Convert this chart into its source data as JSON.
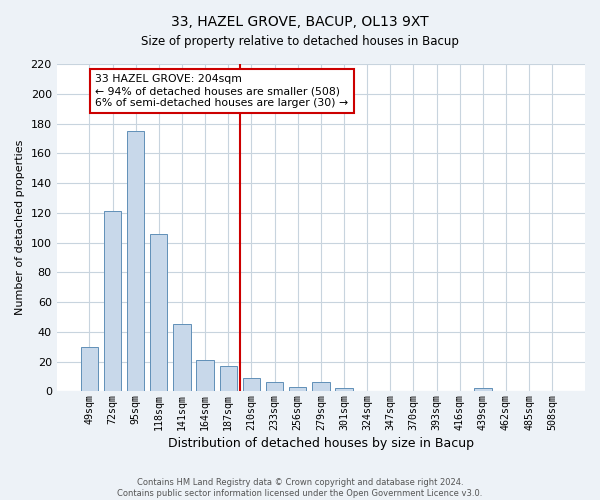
{
  "title": "33, HAZEL GROVE, BACUP, OL13 9XT",
  "subtitle": "Size of property relative to detached houses in Bacup",
  "xlabel": "Distribution of detached houses by size in Bacup",
  "ylabel": "Number of detached properties",
  "bar_labels": [
    "49sqm",
    "72sqm",
    "95sqm",
    "118sqm",
    "141sqm",
    "164sqm",
    "187sqm",
    "210sqm",
    "233sqm",
    "256sqm",
    "279sqm",
    "301sqm",
    "324sqm",
    "347sqm",
    "370sqm",
    "393sqm",
    "416sqm",
    "439sqm",
    "462sqm",
    "485sqm",
    "508sqm"
  ],
  "bar_heights": [
    30,
    121,
    175,
    106,
    45,
    21,
    17,
    9,
    6,
    3,
    6,
    2,
    0,
    0,
    0,
    0,
    0,
    2,
    0,
    0,
    0
  ],
  "bar_color": "#c8d8ea",
  "bar_edge_color": "#6090b8",
  "bar_width": 0.75,
  "vline_x": 6.5,
  "vline_color": "#cc0000",
  "annotation_title": "33 HAZEL GROVE: 204sqm",
  "annotation_line1": "← 94% of detached houses are smaller (508)",
  "annotation_line2": "6% of semi-detached houses are larger (30) →",
  "annotation_box_edge": "#cc0000",
  "ylim": [
    0,
    220
  ],
  "yticks": [
    0,
    20,
    40,
    60,
    80,
    100,
    120,
    140,
    160,
    180,
    200,
    220
  ],
  "footer_line1": "Contains HM Land Registry data © Crown copyright and database right 2024.",
  "footer_line2": "Contains public sector information licensed under the Open Government Licence v3.0.",
  "bg_color": "#edf2f7",
  "plot_bg_color": "#ffffff",
  "grid_color": "#c8d4de"
}
